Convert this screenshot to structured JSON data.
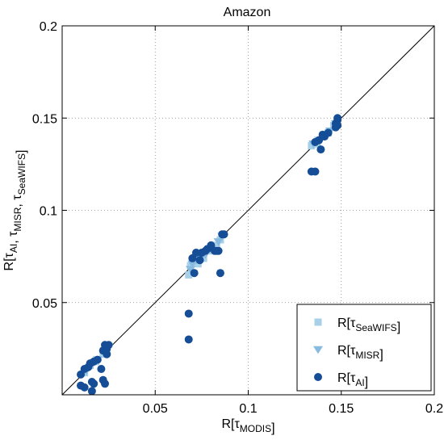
{
  "chart_data": {
    "type": "scatter",
    "title": "Amazon",
    "xlabel": {
      "base": "R[τ",
      "sub": "MODIS",
      "close": "]"
    },
    "ylabel": {
      "parts": [
        {
          "t": "R[τ",
          "sub": "AI"
        },
        {
          "t": ", τ",
          "sub": "MISR"
        },
        {
          "t": ", τ",
          "sub": "SeaWIFS"
        }
      ],
      "close": "]"
    },
    "xlim": [
      0,
      0.2
    ],
    "ylim": [
      0,
      0.2
    ],
    "xticks": [
      "0.05",
      "0.1",
      "0.15",
      "0.2"
    ],
    "yticks": [
      "0.05",
      "0.1",
      "0.15",
      "0.2"
    ],
    "xtick_values": [
      0.05,
      0.1,
      0.15,
      0.2
    ],
    "ytick_values": [
      0.05,
      0.1,
      0.15,
      0.2
    ],
    "grid": true,
    "reference_line": "1:1",
    "legend_position": "bottom-right",
    "colors": {
      "seawifs": "#a8d0e8",
      "misr": "#88bbe0",
      "ai": "#154d96",
      "line": "#000000",
      "grid": "#888888"
    },
    "series": [
      {
        "key": "seawifs",
        "name": {
          "t": "R[τ",
          "sub": "SeaWIFS",
          "close": "]"
        },
        "marker": "square",
        "points": [
          [
            0.012,
            0.012
          ],
          [
            0.015,
            0.016
          ],
          [
            0.018,
            0.018
          ],
          [
            0.022,
            0.022
          ],
          [
            0.024,
            0.025
          ],
          [
            0.068,
            0.065
          ],
          [
            0.069,
            0.07
          ],
          [
            0.071,
            0.072
          ],
          [
            0.073,
            0.071
          ],
          [
            0.076,
            0.074
          ],
          [
            0.079,
            0.078
          ],
          [
            0.083,
            0.081
          ],
          [
            0.085,
            0.084
          ],
          [
            0.134,
            0.135
          ],
          [
            0.137,
            0.136
          ],
          [
            0.14,
            0.14
          ],
          [
            0.143,
            0.142
          ],
          [
            0.146,
            0.146
          ]
        ]
      },
      {
        "key": "misr",
        "name": {
          "t": "R[τ",
          "sub": "MISR",
          "close": "]"
        },
        "marker": "triangle-down",
        "points": [
          [
            0.013,
            0.013
          ],
          [
            0.016,
            0.016
          ],
          [
            0.019,
            0.019
          ],
          [
            0.023,
            0.023
          ],
          [
            0.025,
            0.026
          ],
          [
            0.069,
            0.068
          ],
          [
            0.07,
            0.071
          ],
          [
            0.072,
            0.073
          ],
          [
            0.074,
            0.074
          ],
          [
            0.077,
            0.076
          ],
          [
            0.08,
            0.079
          ],
          [
            0.084,
            0.083
          ],
          [
            0.086,
            0.086
          ],
          [
            0.135,
            0.136
          ],
          [
            0.138,
            0.138
          ],
          [
            0.141,
            0.141
          ],
          [
            0.144,
            0.143
          ],
          [
            0.147,
            0.147
          ]
        ]
      },
      {
        "key": "ai",
        "name": {
          "t": "R[τ",
          "sub": "AI",
          "close": "]"
        },
        "marker": "circle",
        "points": [
          [
            0.01,
            0.011
          ],
          [
            0.012,
            0.014
          ],
          [
            0.014,
            0.015
          ],
          [
            0.015,
            0.017
          ],
          [
            0.017,
            0.018
          ],
          [
            0.019,
            0.019
          ],
          [
            0.016,
            0.007
          ],
          [
            0.017,
            0.006
          ],
          [
            0.016,
            0.002
          ],
          [
            0.01,
            0.005
          ],
          [
            0.012,
            0.004
          ],
          [
            0.022,
            0.008
          ],
          [
            0.023,
            0.006
          ],
          [
            0.021,
            0.014
          ],
          [
            0.022,
            0.024
          ],
          [
            0.023,
            0.027
          ],
          [
            0.024,
            0.025
          ],
          [
            0.025,
            0.027
          ],
          [
            0.024,
            0.022
          ],
          [
            0.068,
            0.03
          ],
          [
            0.068,
            0.044
          ],
          [
            0.071,
            0.066
          ],
          [
            0.07,
            0.074
          ],
          [
            0.072,
            0.077
          ],
          [
            0.074,
            0.073
          ],
          [
            0.075,
            0.077
          ],
          [
            0.077,
            0.078
          ],
          [
            0.078,
            0.079
          ],
          [
            0.08,
            0.081
          ],
          [
            0.082,
            0.078
          ],
          [
            0.083,
            0.078
          ],
          [
            0.084,
            0.078
          ],
          [
            0.085,
            0.066
          ],
          [
            0.086,
            0.087
          ],
          [
            0.087,
            0.087
          ],
          [
            0.134,
            0.121
          ],
          [
            0.136,
            0.121
          ],
          [
            0.136,
            0.137
          ],
          [
            0.138,
            0.138
          ],
          [
            0.139,
            0.133
          ],
          [
            0.14,
            0.141
          ],
          [
            0.141,
            0.14
          ],
          [
            0.143,
            0.142
          ],
          [
            0.147,
            0.147
          ],
          [
            0.148,
            0.149
          ],
          [
            0.148,
            0.15
          ],
          [
            0.148,
            0.146
          ],
          [
            0.147,
            0.145
          ]
        ]
      }
    ]
  }
}
